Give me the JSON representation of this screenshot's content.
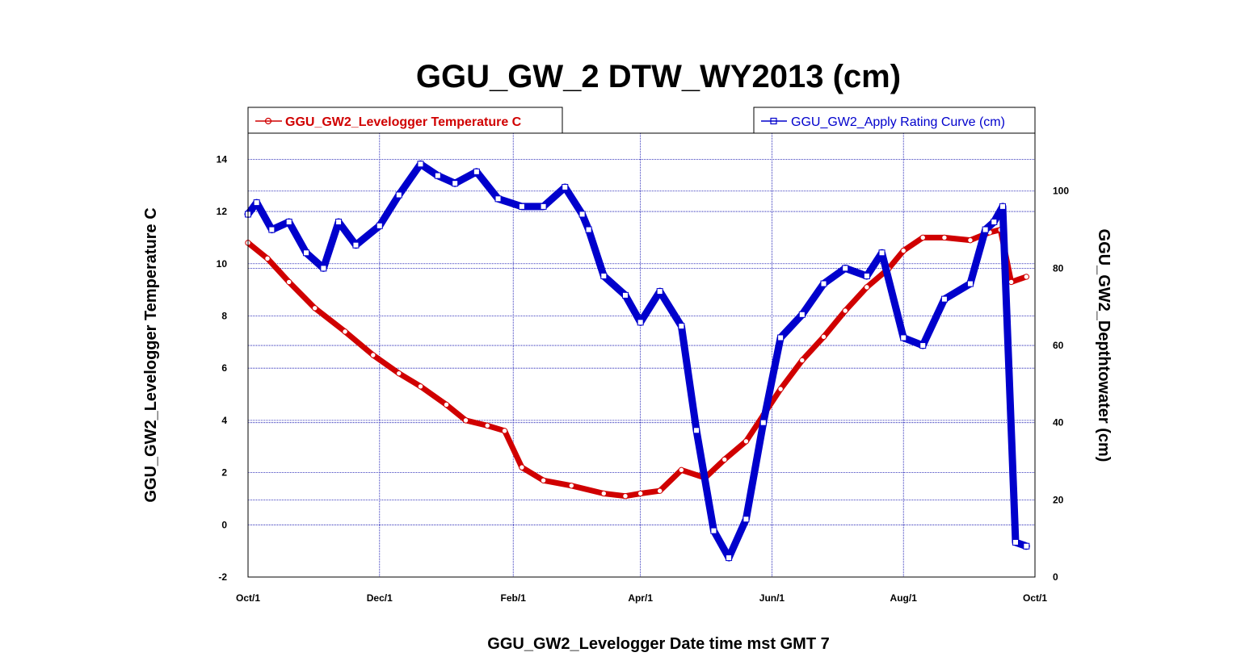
{
  "chart_data": {
    "type": "line",
    "title": "GGU_GW_2 DTW_WY2013 (cm)",
    "xlabel": "GGU_GW2_Levelogger Date time mst GMT 7",
    "ylabel": "GGU_GW2_Levelogger Temperature C",
    "y2label": "GGU_GW2_Depthtowater (cm)",
    "xlim": [
      "2012-10-01",
      "2013-10-01"
    ],
    "ylim": [
      -2,
      15
    ],
    "y2lim": [
      0,
      115
    ],
    "grid": true,
    "x_ticks": [
      "Oct/1",
      "Dec/1",
      "Feb/1",
      "Apr/1",
      "Jun/1",
      "Aug/1",
      "Oct/1"
    ],
    "y_ticks": [
      "-2",
      "0",
      "2",
      "4",
      "6",
      "8",
      "10",
      "12",
      "14"
    ],
    "y2_ticks": [
      "0",
      "20",
      "40",
      "60",
      "80",
      "100"
    ],
    "legend": {
      "left": {
        "label": "GGU_GW2_Levelogger Temperature C",
        "placement": "top-left",
        "color": "#d00000"
      },
      "right": {
        "label": "GGU_GW2_Apply Rating Curve (cm)",
        "placement": "top-right",
        "color": "#0000cc"
      }
    },
    "series": [
      {
        "name": "GGU_GW2_Levelogger Temperature C",
        "axis": "left",
        "color": "#d00000",
        "marker": "circle",
        "x": [
          "2012-10-01",
          "2012-10-10",
          "2012-10-20",
          "2012-11-01",
          "2012-11-15",
          "2012-11-28",
          "2012-12-10",
          "2012-12-20",
          "2013-01-01",
          "2013-01-10",
          "2013-01-20",
          "2013-01-28",
          "2013-02-05",
          "2013-02-15",
          "2013-02-28",
          "2013-03-15",
          "2013-03-25",
          "2013-04-01",
          "2013-04-10",
          "2013-04-20",
          "2013-05-01",
          "2013-05-10",
          "2013-05-20",
          "2013-05-28",
          "2013-06-05",
          "2013-06-15",
          "2013-06-25",
          "2013-07-05",
          "2013-07-15",
          "2013-07-25",
          "2013-08-01",
          "2013-08-10",
          "2013-08-20",
          "2013-09-01",
          "2013-09-10",
          "2013-09-15",
          "2013-09-20",
          "2013-09-27"
        ],
        "y": [
          10.8,
          10.2,
          9.3,
          8.3,
          7.4,
          6.5,
          5.8,
          5.3,
          4.6,
          4.0,
          3.8,
          3.6,
          2.2,
          1.7,
          1.5,
          1.2,
          1.1,
          1.2,
          1.3,
          2.1,
          1.8,
          2.5,
          3.2,
          4.2,
          5.2,
          6.3,
          7.2,
          8.2,
          9.1,
          9.8,
          10.5,
          11.0,
          11.0,
          10.9,
          11.2,
          11.3,
          9.3,
          9.5
        ]
      },
      {
        "name": "GGU_GW2_Apply Rating Curve (cm)",
        "axis": "right",
        "color": "#0000cc",
        "marker": "square",
        "x": [
          "2012-10-01",
          "2012-10-05",
          "2012-10-12",
          "2012-10-20",
          "2012-10-28",
          "2012-11-05",
          "2012-11-12",
          "2012-11-20",
          "2012-12-01",
          "2012-12-10",
          "2012-12-20",
          "2012-12-28",
          "2013-01-05",
          "2013-01-15",
          "2013-01-25",
          "2013-02-05",
          "2013-02-15",
          "2013-02-25",
          "2013-03-05",
          "2013-03-08",
          "2013-03-15",
          "2013-03-25",
          "2013-04-01",
          "2013-04-10",
          "2013-04-20",
          "2013-04-27",
          "2013-05-05",
          "2013-05-12",
          "2013-05-20",
          "2013-05-28",
          "2013-06-05",
          "2013-06-15",
          "2013-06-25",
          "2013-07-05",
          "2013-07-15",
          "2013-07-22",
          "2013-08-01",
          "2013-08-10",
          "2013-08-20",
          "2013-09-01",
          "2013-09-08",
          "2013-09-12",
          "2013-09-16",
          "2013-09-22",
          "2013-09-27"
        ],
        "y": [
          94,
          97,
          90,
          92,
          84,
          80,
          92,
          86,
          91,
          99,
          107,
          104,
          102,
          105,
          98,
          96,
          96,
          101,
          94,
          90,
          78,
          73,
          66,
          74,
          65,
          38,
          12,
          5,
          15,
          40,
          62,
          68,
          76,
          80,
          78,
          84,
          62,
          60,
          72,
          76,
          90,
          92,
          96,
          9,
          8
        ]
      }
    ]
  }
}
